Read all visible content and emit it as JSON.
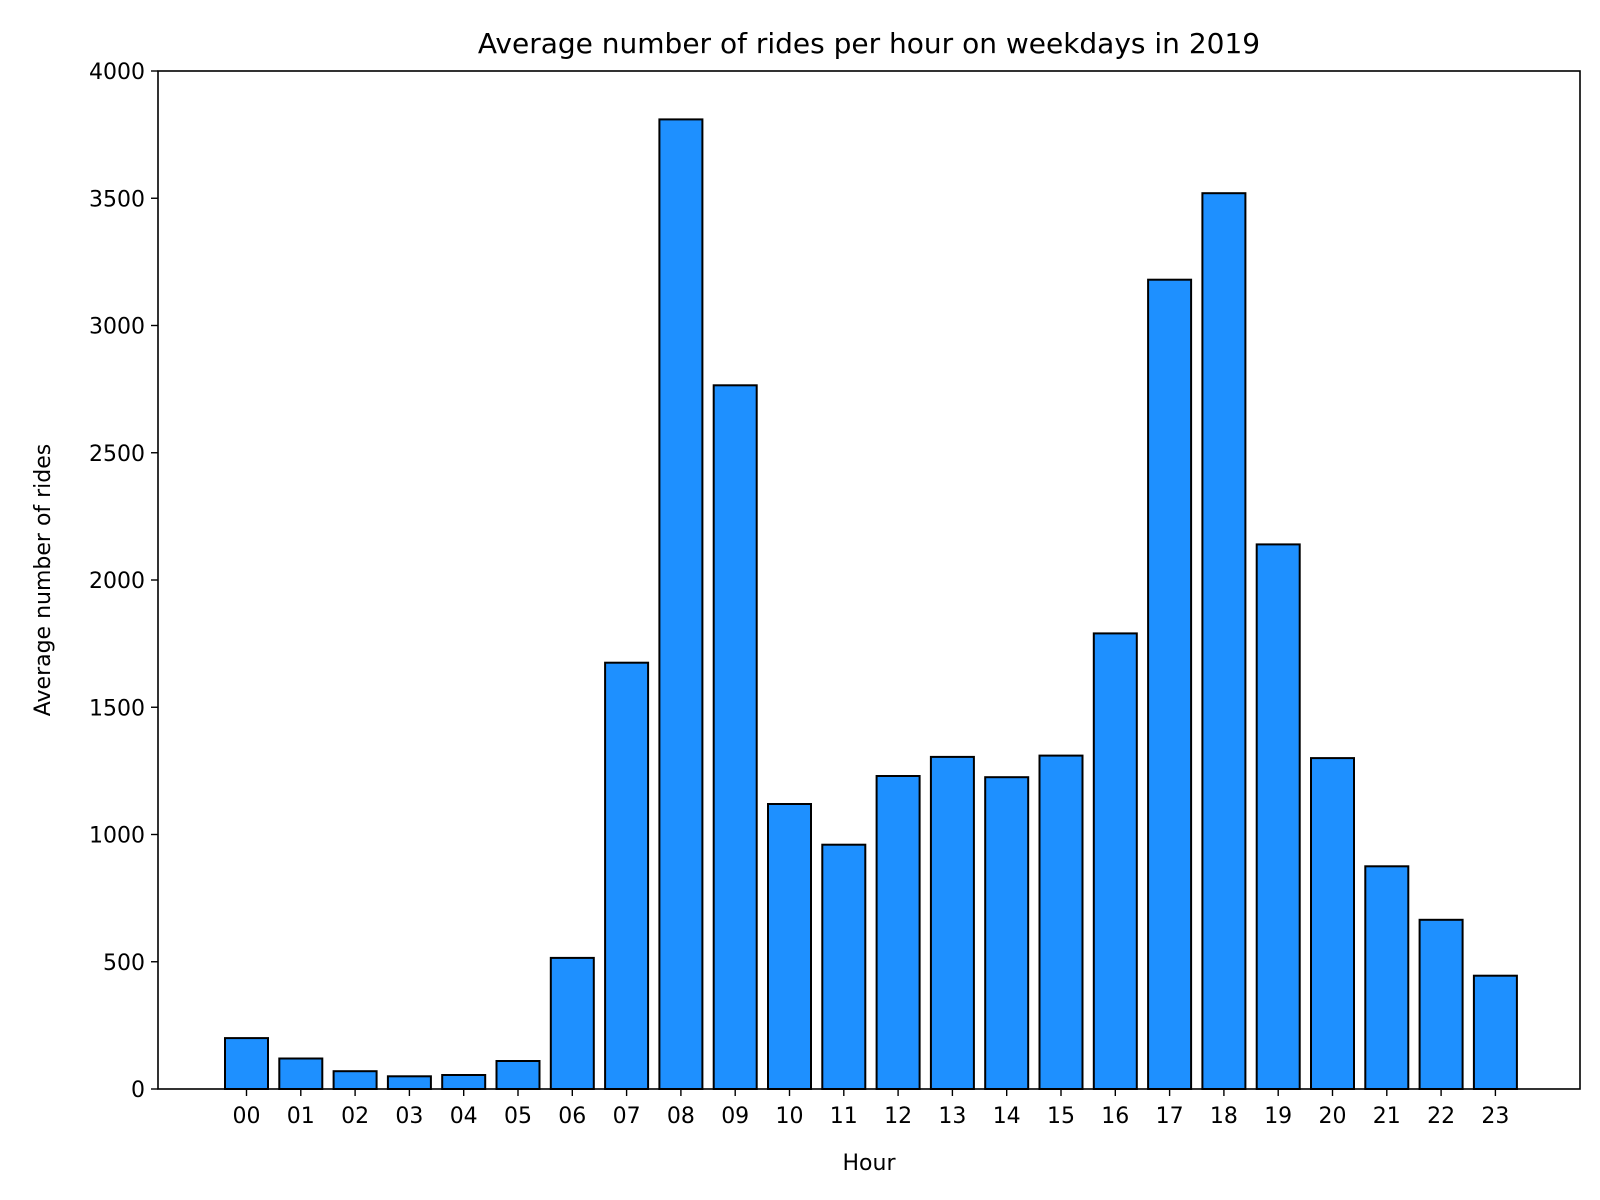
{
  "chart_data": {
    "type": "bar",
    "title": "Average number of rides per hour on weekdays in 2019",
    "xlabel": "Hour",
    "ylabel": "Average number of rides",
    "categories": [
      "00",
      "01",
      "02",
      "03",
      "04",
      "05",
      "06",
      "07",
      "08",
      "09",
      "10",
      "11",
      "12",
      "13",
      "14",
      "15",
      "16",
      "17",
      "18",
      "19",
      "20",
      "21",
      "22",
      "23"
    ],
    "values": [
      200,
      120,
      70,
      50,
      55,
      110,
      515,
      1675,
      3810,
      2765,
      1120,
      960,
      1230,
      1305,
      1225,
      1310,
      1790,
      3180,
      3520,
      2140,
      1300,
      875,
      665,
      445
    ],
    "ylim": [
      0,
      4000
    ],
    "yticks": [
      0,
      500,
      1000,
      1500,
      2000,
      2500,
      3000,
      3500,
      4000
    ],
    "grid": false,
    "legend": "none",
    "bar_color": "#1e90ff",
    "edge_color": "#000000"
  }
}
